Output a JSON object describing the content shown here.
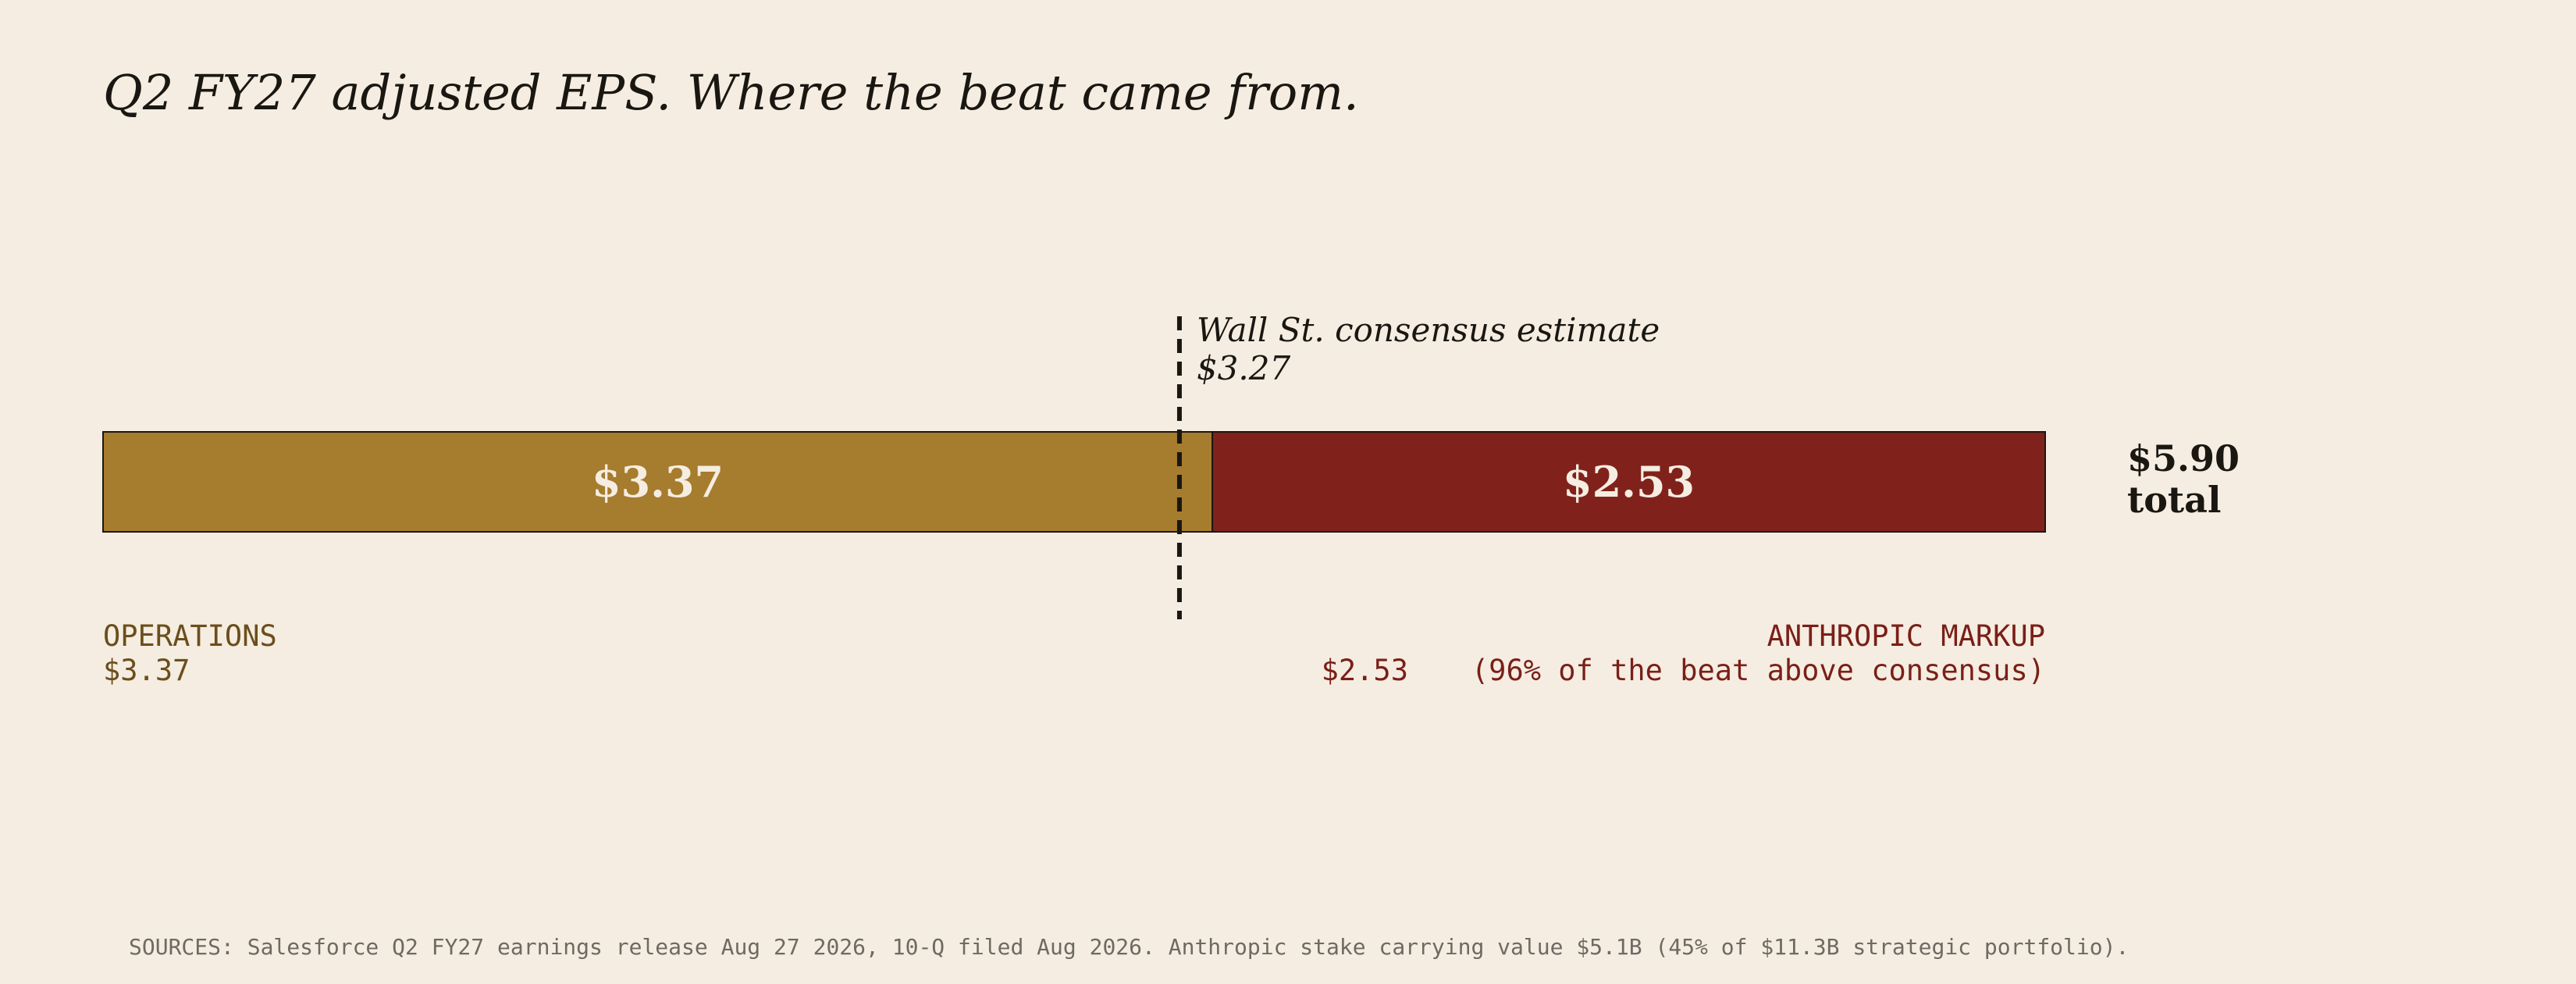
{
  "colors": {
    "background": "#f5ede1",
    "operations": "#a67c2e",
    "anthropic": "#80221b",
    "operations_text": "#6b4e1c",
    "anthropic_text": "#7a1f18",
    "ink": "#1a1712",
    "muted": "#6e6a63"
  },
  "chart_data": {
    "type": "bar",
    "orientation": "horizontal",
    "stacked": true,
    "title": "Q2 FY27 adjusted EPS. Where the beat came from.",
    "xlim": [
      0,
      5.9
    ],
    "grid": false,
    "series": [
      {
        "key": "operations",
        "value": 3.37,
        "bar_label": "$3.37",
        "caption_name": "OPERATIONS",
        "caption_value": "$3.37"
      },
      {
        "key": "anthropic",
        "value": 2.53,
        "bar_label": "$2.53",
        "caption_name": "ANTHROPIC MARKUP",
        "caption_value": "$2.53",
        "caption_note": "(96% of the beat above consensus)"
      }
    ],
    "reference_line": {
      "value": 3.27,
      "label_line1": "Wall St. consensus estimate",
      "label_line2": "$3.27"
    },
    "total": {
      "value": 5.9,
      "label_line1": "$5.90",
      "label_line2": "total"
    }
  },
  "footer": {
    "sources": "SOURCES: Salesforce Q2 FY27 earnings release Aug 27 2026, 10-Q filed Aug 2026. Anthropic stake carrying value $5.1B (45% of $11.3B strategic portfolio)."
  }
}
